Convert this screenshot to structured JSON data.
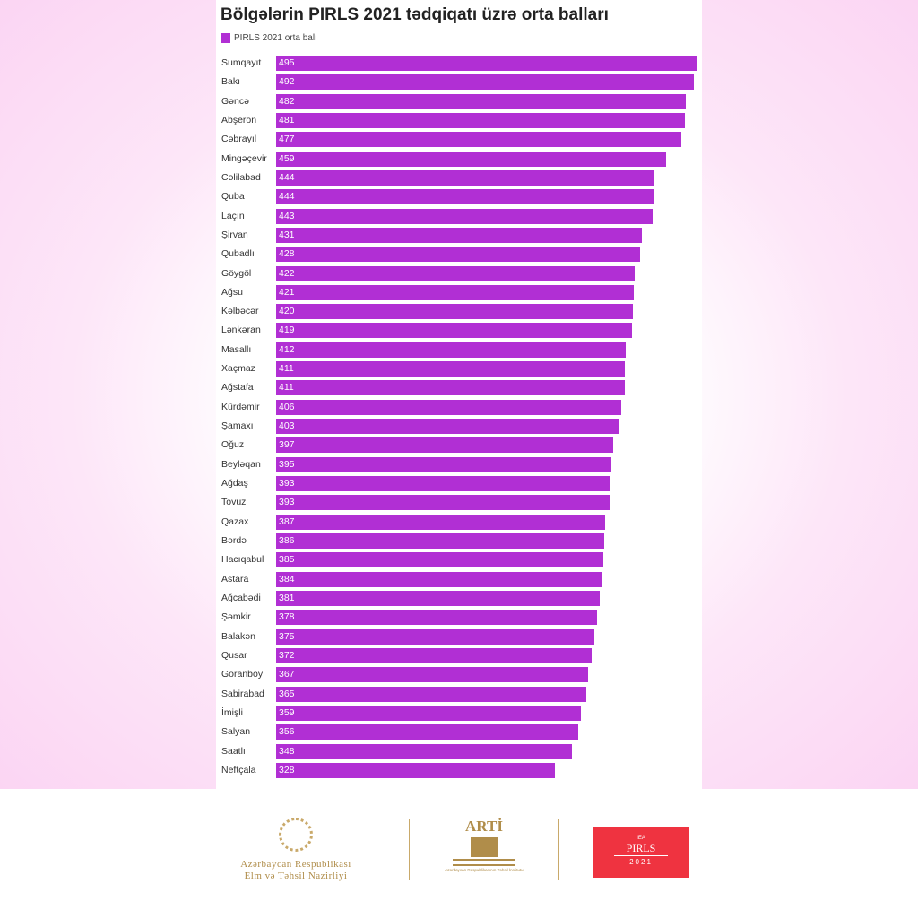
{
  "chart_data": {
    "type": "bar",
    "orientation": "horizontal",
    "title": "Bölgələrin PIRLS 2021 tədqiqatı üzrə orta balları",
    "legend": [
      "PIRLS 2021 orta balı"
    ],
    "legend_placement": "top-left",
    "color": "#b12fd4",
    "xlim": [
      0,
      495
    ],
    "categories": [
      "Sumqayıt",
      "Bakı",
      "Gəncə",
      "Abşeron",
      "Cəbrayıl",
      "Mingəçevir",
      "Cəlilabad",
      "Quba",
      "Laçın",
      "Şirvan",
      "Qubadlı",
      "Göygöl",
      "Ağsu",
      "Kəlbəcər",
      "Lənkəran",
      "Masallı",
      "Xaçmaz",
      "Ağstafa",
      "Kürdəmir",
      "Şamaxı",
      "Oğuz",
      "Beyləqan",
      "Ağdaş",
      "Tovuz",
      "Qazax",
      "Bərdə",
      "Hacıqabul",
      "Astara",
      "Ağcabədi",
      "Şəmkir",
      "Balakən",
      "Qusar",
      "Goranboy",
      "Sabirabad",
      "İmişli",
      "Salyan",
      "Saatlı",
      "Neftçala"
    ],
    "values": [
      495,
      492,
      482,
      481,
      477,
      459,
      444,
      444,
      443,
      431,
      428,
      422,
      421,
      420,
      419,
      412,
      411,
      411,
      406,
      403,
      397,
      395,
      393,
      393,
      387,
      386,
      385,
      384,
      381,
      378,
      375,
      372,
      367,
      365,
      359,
      356,
      348,
      328
    ]
  },
  "footer": {
    "ministry": [
      "Azərbaycan Respublikası",
      "Elm və Təhsil Nazirliyi"
    ],
    "arti": {
      "name": "ARTİ",
      "sub": "Azərbaycan Respublikasının Təhsil İnstitutu"
    },
    "pirls": {
      "iea": "IEA",
      "name": "PIRLS",
      "year": "2021"
    }
  }
}
